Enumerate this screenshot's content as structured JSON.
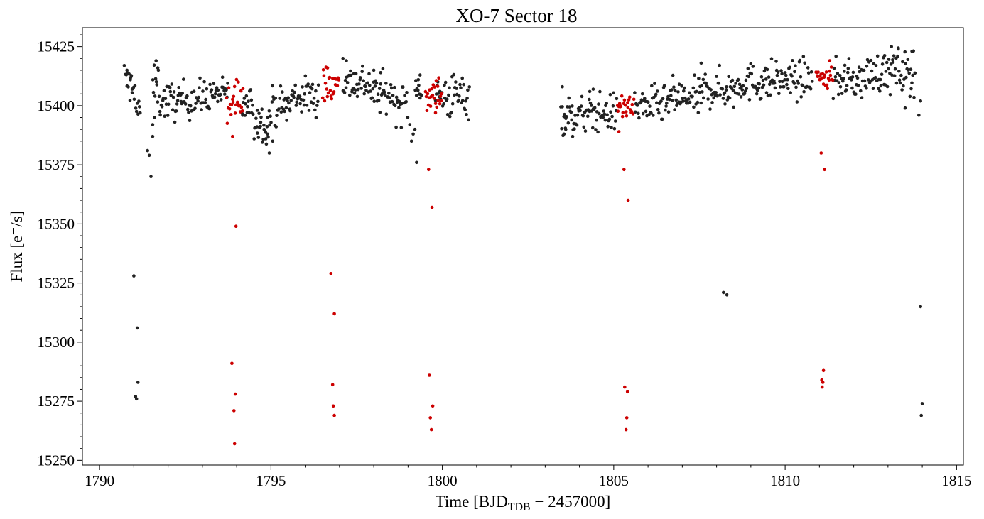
{
  "chart_data": {
    "type": "scatter",
    "title": "XO-7 Sector 18",
    "xlabel": "Time [BJD",
    "xlabel_sub": "TDB",
    "xlabel_tail": " − 2457000]",
    "ylabel": "Flux [e⁻/s]",
    "xlim": [
      1789.5,
      1815.2
    ],
    "ylim": [
      15248,
      15433
    ],
    "xticks": [
      1790,
      1795,
      1800,
      1805,
      1810,
      1815
    ],
    "xtick_labels": [
      "1790",
      "1795",
      "1800",
      "1805",
      "1810",
      "1815"
    ],
    "yticks": [
      15250,
      15275,
      15300,
      15325,
      15350,
      15375,
      15400,
      15425
    ],
    "ytick_labels": [
      "15250",
      "15275",
      "15300",
      "15325",
      "15350",
      "15375",
      "15400",
      "15425"
    ],
    "grid": false,
    "colors": {
      "normal": "#222222",
      "highlighted": "#cc0000"
    },
    "series": [
      {
        "color": "#222222",
        "segments": [
          [
            1790.75,
            1791.05,
            15409,
            4
          ],
          [
            1791.05,
            1791.2,
            15398,
            3
          ],
          [
            1791.55,
            1791.75,
            15408,
            4
          ],
          [
            1791.75,
            1792.5,
            15402,
            4
          ],
          [
            1792.5,
            1793.2,
            15403,
            4
          ],
          [
            1793.2,
            1793.75,
            15405,
            3
          ],
          [
            1794.15,
            1794.5,
            15400,
            4
          ],
          [
            1794.5,
            1795.0,
            15393,
            4
          ],
          [
            1795.0,
            1795.6,
            15400,
            4
          ],
          [
            1795.6,
            1796.4,
            15404,
            4
          ],
          [
            1797.1,
            1797.9,
            15410,
            4
          ],
          [
            1797.9,
            1798.6,
            15405,
            4
          ],
          [
            1798.6,
            1799.0,
            15401,
            4
          ],
          [
            1799.2,
            1799.4,
            15408,
            3
          ],
          [
            1799.8,
            1800.8,
            15404,
            5
          ],
          [
            1803.45,
            1804.4,
            15396,
            4
          ],
          [
            1804.4,
            1805.1,
            15397,
            4
          ],
          [
            1805.6,
            1806.6,
            15400,
            4
          ],
          [
            1806.6,
            1807.6,
            15403,
            4
          ],
          [
            1807.6,
            1808.6,
            15407,
            4
          ],
          [
            1808.6,
            1809.6,
            15410,
            4
          ],
          [
            1809.6,
            1810.8,
            15411,
            4
          ],
          [
            1811.4,
            1812.4,
            15411,
            4
          ],
          [
            1812.4,
            1813.0,
            15414,
            4
          ],
          [
            1813.0,
            1813.8,
            15414,
            5
          ]
        ],
        "points": [
          [
            1790.72,
            15417
          ],
          [
            1790.8,
            15415
          ],
          [
            1790.9,
            15411
          ],
          [
            1790.95,
            15407
          ],
          [
            1791.5,
            15370
          ],
          [
            1791.4,
            15381
          ],
          [
            1791.45,
            15379
          ],
          [
            1791.55,
            15387
          ],
          [
            1791.55,
            15392
          ],
          [
            1791.6,
            15395
          ],
          [
            1791.65,
            15419
          ],
          [
            1791.7,
            15416
          ],
          [
            1794.6,
            15398
          ],
          [
            1794.7,
            15393
          ],
          [
            1794.8,
            15390
          ],
          [
            1794.85,
            15386
          ],
          [
            1794.9,
            15388
          ],
          [
            1794.95,
            15380
          ],
          [
            1795.05,
            15385
          ],
          [
            1797.1,
            15420
          ],
          [
            1797.2,
            15419
          ],
          [
            1798.0,
            15415
          ],
          [
            1798.2,
            15414
          ],
          [
            1799.1,
            15385
          ],
          [
            1799.15,
            15388
          ],
          [
            1799.2,
            15390
          ],
          [
            1799.05,
            15392
          ],
          [
            1799.25,
            15376
          ],
          [
            1799.3,
            15411
          ],
          [
            1799.35,
            15413
          ],
          [
            1803.5,
            15408
          ],
          [
            1803.55,
            15388
          ],
          [
            1803.6,
            15390
          ],
          [
            1803.8,
            15387
          ],
          [
            1804.3,
            15406
          ],
          [
            1804.4,
            15407
          ],
          [
            1807.55,
            15418
          ],
          [
            1813.1,
            15425
          ],
          [
            1813.3,
            15424
          ],
          [
            1813.7,
            15423
          ],
          [
            1813.5,
            15399
          ],
          [
            1813.9,
            15396
          ],
          [
            1813.95,
            15402
          ],
          [
            1791.0,
            15328
          ],
          [
            1791.1,
            15306
          ],
          [
            1791.12,
            15283
          ],
          [
            1791.05,
            15277
          ],
          [
            1791.08,
            15276
          ],
          [
            1808.2,
            15321
          ],
          [
            1808.3,
            15320
          ],
          [
            1813.95,
            15315
          ],
          [
            1814.0,
            15274
          ],
          [
            1813.97,
            15269
          ]
        ]
      },
      {
        "color": "#cc0000",
        "segments": [
          [
            1793.7,
            1794.2,
            15402,
            4
          ],
          [
            1796.5,
            1797.0,
            15409,
            4
          ],
          [
            1799.5,
            1800.0,
            15406,
            4
          ],
          [
            1805.1,
            1805.6,
            15399,
            3
          ],
          [
            1810.9,
            1811.4,
            15412,
            3
          ]
        ],
        "points": [
          [
            1793.88,
            15387
          ],
          [
            1793.98,
            15349
          ],
          [
            1793.86,
            15291
          ],
          [
            1793.96,
            15278
          ],
          [
            1793.92,
            15271
          ],
          [
            1793.94,
            15257
          ],
          [
            1794.05,
            15410
          ],
          [
            1796.75,
            15329
          ],
          [
            1796.85,
            15312
          ],
          [
            1796.8,
            15282
          ],
          [
            1796.82,
            15273
          ],
          [
            1796.85,
            15269
          ],
          [
            1796.65,
            15416
          ],
          [
            1799.6,
            15373
          ],
          [
            1799.7,
            15357
          ],
          [
            1799.62,
            15286
          ],
          [
            1799.72,
            15273
          ],
          [
            1799.65,
            15268
          ],
          [
            1799.68,
            15263
          ],
          [
            1799.8,
            15397
          ],
          [
            1805.15,
            15389
          ],
          [
            1805.3,
            15373
          ],
          [
            1805.42,
            15360
          ],
          [
            1805.32,
            15281
          ],
          [
            1805.4,
            15279
          ],
          [
            1805.38,
            15268
          ],
          [
            1805.36,
            15263
          ],
          [
            1811.05,
            15380
          ],
          [
            1811.15,
            15373
          ],
          [
            1811.12,
            15288
          ],
          [
            1811.07,
            15284
          ],
          [
            1811.1,
            15283
          ],
          [
            1811.08,
            15281
          ],
          [
            1811.3,
            15419
          ]
        ]
      }
    ]
  }
}
